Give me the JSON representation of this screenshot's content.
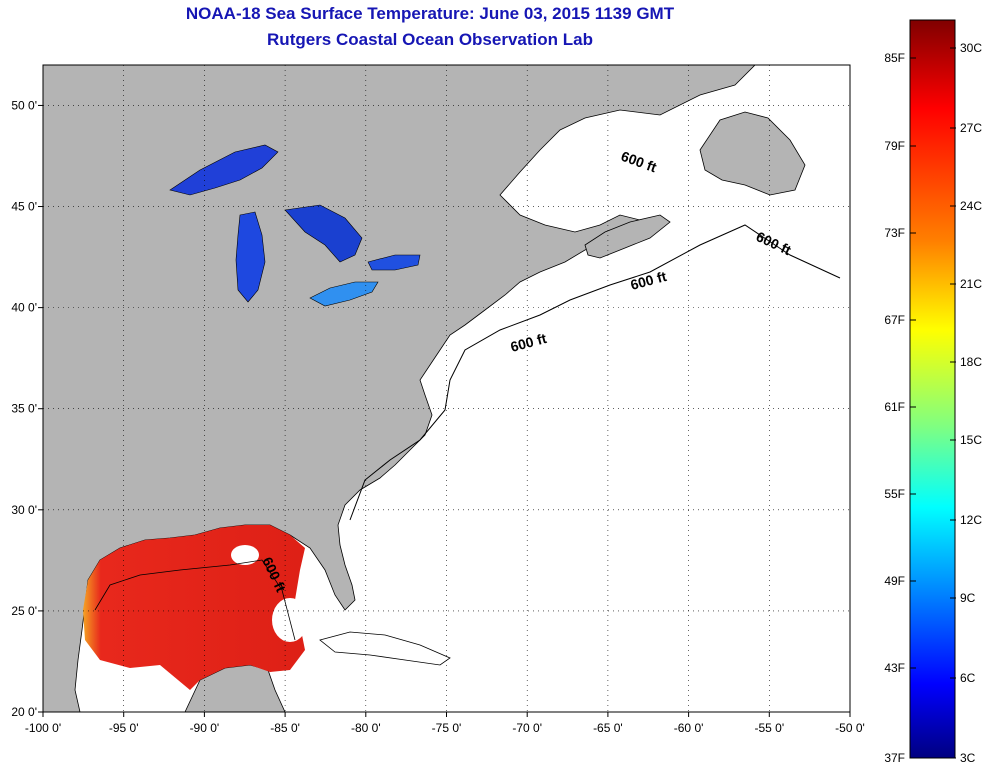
{
  "title_line1": "NOAA-18 Sea Surface Temperature:  June 03, 2015 1139 GMT",
  "title_line2": "Rutgers Coastal Ocean Observation Lab",
  "map": {
    "lon_range": [
      -100,
      -50
    ],
    "lat_range": [
      20,
      52
    ],
    "lon_ticks": [
      "-100 0'",
      "-95 0'",
      "-90 0'",
      "-85 0'",
      "-80 0'",
      "-75 0'",
      "-70 0'",
      "-65 0'",
      "-60 0'",
      "-55 0'",
      "-50 0'"
    ],
    "lat_ticks": [
      "50 0'",
      "45 0'",
      "40 0'",
      "35 0'",
      "30 0'",
      "25 0'",
      "20 0'"
    ],
    "contour_label": "600 ft",
    "colors": {
      "land": "#b4b4b4",
      "ocean_no_data": "#ffffff",
      "gulf_sst": "#e8281c"
    }
  },
  "colorbar": {
    "celsius_labels": [
      "30C",
      "27C",
      "24C",
      "21C",
      "18C",
      "15C",
      "12C",
      "9C",
      "6C",
      "3C"
    ],
    "fahrenheit_labels": [
      "85F",
      "79F",
      "73F",
      "67F",
      "61F",
      "55F",
      "49F",
      "43F",
      "37F"
    ],
    "colors": [
      "#800000",
      "#ff0000",
      "#ff8000",
      "#ffff00",
      "#80ff80",
      "#00ffff",
      "#0080ff",
      "#0000ff",
      "#000080"
    ]
  }
}
